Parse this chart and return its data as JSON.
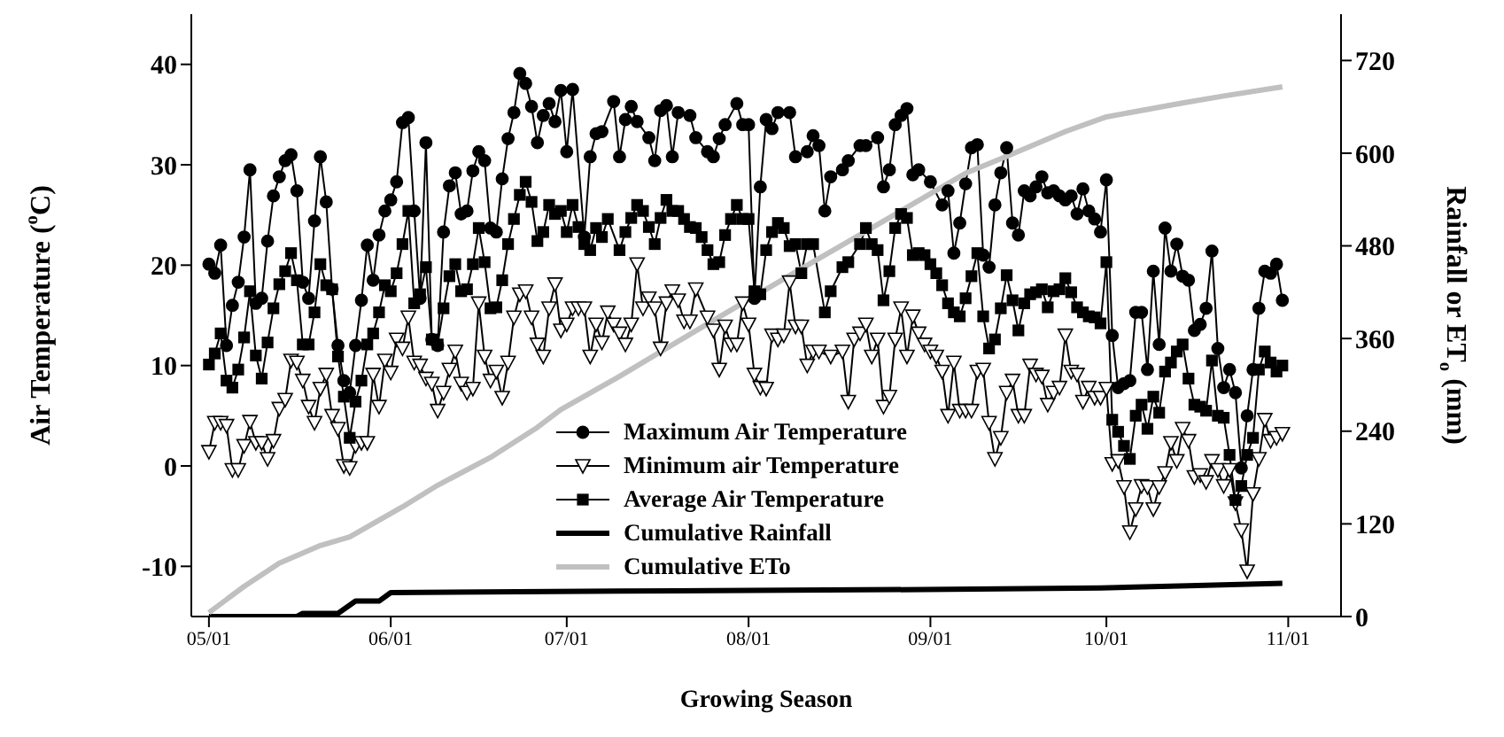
{
  "chart_data": {
    "type": "line",
    "xlabel": "Growing Season",
    "ylabel": "Air Temperature ($^{o}$C)",
    "y2label": "Rainfall or ET$_{o}$ (mm)",
    "xlim": [
      "--04-28",
      "--11-10"
    ],
    "xticks": [
      {
        "value": "--05-01",
        "label": "05/01"
      },
      {
        "value": "--06-01",
        "label": "06/01"
      },
      {
        "value": "--07-01",
        "label": "07/01"
      },
      {
        "value": "--08-01",
        "label": "08/01"
      },
      {
        "value": "--09-01",
        "label": "09/01"
      },
      {
        "value": "--10-01",
        "label": "10/01"
      },
      {
        "value": "--11-01",
        "label": "11/01"
      }
    ],
    "ylim": [
      -15,
      45
    ],
    "yticks": [
      -10,
      0,
      10,
      20,
      30,
      40
    ],
    "y2lim": [
      0,
      780
    ],
    "y2ticks": [
      0,
      120,
      240,
      360,
      480,
      600,
      720
    ],
    "grid": false,
    "legend": "bottom",
    "line_style": "solid",
    "series": [
      {
        "name": "Maximum Air Temperature",
        "color": "#000000",
        "marker": "circle",
        "x": [
          "--05-01",
          "--05-02",
          "--05-03",
          "--05-04",
          "--05-05",
          "--05-06",
          "--05-07",
          "--05-08",
          "--05-09",
          "--05-10",
          "--05-11",
          "--05-12",
          "--05-13",
          "--05-14",
          "--05-15",
          "--05-16",
          "--05-17",
          "--05-18",
          "--05-19",
          "--05-20",
          "--05-21",
          "--05-22",
          "--05-23",
          "--05-24",
          "--05-25",
          "--05-26",
          "--05-27",
          "--05-28",
          "--05-29",
          "--05-30",
          "--05-31",
          "--06-01",
          "--06-02",
          "--06-03",
          "--06-04",
          "--06-05",
          "--06-06",
          "--06-07",
          "--06-08",
          "--06-09",
          "--06-10",
          "--06-11",
          "--06-12",
          "--06-13",
          "--06-14",
          "--06-15",
          "--06-16",
          "--06-17",
          "--06-18",
          "--06-19",
          "--06-20",
          "--06-21",
          "--06-22",
          "--06-23",
          "--06-24",
          "--06-25",
          "--06-26",
          "--06-27",
          "--06-28",
          "--06-29",
          "--06-30",
          "--07-01",
          "--07-02",
          "--07-04",
          "--07-05",
          "--07-06",
          "--07-07",
          "--07-09",
          "--07-10",
          "--07-11",
          "--07-12",
          "--07-13",
          "--07-15",
          "--07-16",
          "--07-17",
          "--07-18",
          "--07-19",
          "--07-20",
          "--07-22",
          "--07-23",
          "--07-25",
          "--07-26",
          "--07-27",
          "--07-28",
          "--07-30",
          "--07-31",
          "--08-01",
          "--08-02",
          "--08-03",
          "--08-04",
          "--08-05",
          "--08-06",
          "--08-08",
          "--08-09",
          "--08-11",
          "--08-12",
          "--08-13",
          "--08-14",
          "--08-15",
          "--08-17",
          "--08-18",
          "--08-20",
          "--08-21",
          "--08-23",
          "--08-24",
          "--08-25",
          "--08-26",
          "--08-27",
          "--08-28",
          "--08-29",
          "--08-30",
          "--09-01",
          "--09-03",
          "--09-04",
          "--09-05",
          "--09-06",
          "--09-07",
          "--09-08",
          "--09-09",
          "--09-10",
          "--09-11",
          "--09-12",
          "--09-13",
          "--09-14",
          "--09-15",
          "--09-16",
          "--09-17",
          "--09-18",
          "--09-19",
          "--09-20",
          "--09-21",
          "--09-22",
          "--09-23",
          "--09-24",
          "--09-25",
          "--09-26",
          "--09-27",
          "--09-28",
          "--09-29",
          "--09-30",
          "--10-01",
          "--10-02",
          "--10-03",
          "--10-04",
          "--10-05",
          "--10-06",
          "--10-07",
          "--10-08",
          "--10-09",
          "--10-10",
          "--10-11",
          "--10-12",
          "--10-13",
          "--10-14",
          "--10-15",
          "--10-16",
          "--10-17",
          "--10-18",
          "--10-19",
          "--10-20",
          "--10-21",
          "--10-22",
          "--10-23",
          "--10-24",
          "--10-25",
          "--10-26",
          "--10-27",
          "--10-28",
          "--10-29",
          "--10-30",
          "--10-31"
        ],
        "values": [
          20.1,
          19.2,
          22,
          12,
          16,
          18.3,
          22.8,
          29.5,
          16.2,
          16.7,
          22.4,
          26.9,
          28.8,
          30.4,
          31,
          27.4,
          18.3,
          16.7,
          24.4,
          30.8,
          26.3,
          17.6,
          12,
          8.5,
          7.3,
          12,
          16.5,
          22,
          18.5,
          23,
          25.4,
          26.5,
          28.3,
          34.2,
          34.7,
          25.4,
          16.7,
          32.2,
          12.6,
          12,
          23.3,
          27.9,
          29.2,
          25.1,
          25.4,
          29.4,
          31.3,
          30.4,
          23.7,
          23.3,
          28.6,
          32.6,
          35.2,
          39.1,
          38.1,
          35.8,
          32.2,
          34.9,
          36.1,
          34.3,
          37.4,
          31.3,
          37.5,
          22.8,
          30.8,
          33.1,
          33.3,
          36.3,
          30.8,
          34.5,
          35.8,
          34.3,
          32.7,
          30.4,
          35.4,
          35.9,
          30.8,
          35.2,
          34.9,
          32.7,
          31.3,
          30.8,
          32.6,
          34,
          36.1,
          34,
          34,
          16.7,
          27.8,
          34.5,
          33.6,
          35.2,
          35.2,
          30.8,
          31.3,
          32.9,
          31.9,
          25.4,
          28.8,
          29.5,
          30.4,
          31.9,
          31.9,
          32.7,
          27.8,
          29.5,
          34,
          34.9,
          35.6,
          29,
          29.5,
          28.3,
          26,
          27.4,
          21.2,
          24.2,
          28.1,
          31.7,
          32,
          21,
          19.8,
          26,
          29.2,
          31.7,
          24.2,
          23,
          27.4,
          26.9,
          27.8,
          28.8,
          27.2,
          27.4,
          26.9,
          26.5,
          26.9,
          25.1,
          27.6,
          25.4,
          24.6,
          23.3,
          28.5,
          13,
          7.8,
          8.2,
          8.5,
          15.3,
          15.3,
          9.6,
          19.4,
          12.1,
          23.7,
          19.4,
          22.1,
          18.9,
          18.5,
          13.5,
          14.1,
          15.7,
          21.4,
          11.7,
          7.8,
          9.6,
          7.3,
          -0.2,
          5,
          9.6,
          15.7,
          19.4,
          19.2,
          20.1,
          16.5
        ]
      },
      {
        "name": "Minimum air Temperature",
        "color": "#000000",
        "marker": "triangle",
        "x": [
          "--05-01",
          "--05-02",
          "--05-03",
          "--05-04",
          "--05-05",
          "--05-06",
          "--05-07",
          "--05-08",
          "--05-09",
          "--05-10",
          "--05-11",
          "--05-12",
          "--05-13",
          "--05-14",
          "--05-15",
          "--05-16",
          "--05-17",
          "--05-18",
          "--05-19",
          "--05-20",
          "--05-21",
          "--05-22",
          "--05-23",
          "--05-24",
          "--05-25",
          "--05-26",
          "--05-27",
          "--05-28",
          "--05-29",
          "--05-30",
          "--05-31",
          "--06-01",
          "--06-02",
          "--06-03",
          "--06-04",
          "--06-05",
          "--06-06",
          "--06-07",
          "--06-08",
          "--06-09",
          "--06-10",
          "--06-11",
          "--06-12",
          "--06-13",
          "--06-14",
          "--06-15",
          "--06-16",
          "--06-17",
          "--06-18",
          "--06-19",
          "--06-20",
          "--06-21",
          "--06-22",
          "--06-23",
          "--06-24",
          "--06-25",
          "--06-26",
          "--06-27",
          "--06-28",
          "--06-29",
          "--06-30",
          "--07-01",
          "--07-02",
          "--07-03",
          "--07-04",
          "--07-05",
          "--07-06",
          "--07-07",
          "--07-08",
          "--07-09",
          "--07-10",
          "--07-11",
          "--07-12",
          "--07-13",
          "--07-14",
          "--07-15",
          "--07-16",
          "--07-17",
          "--07-18",
          "--07-19",
          "--07-20",
          "--07-21",
          "--07-22",
          "--07-23",
          "--07-25",
          "--07-26",
          "--07-27",
          "--07-28",
          "--07-29",
          "--07-30",
          "--07-31",
          "--08-01",
          "--08-02",
          "--08-03",
          "--08-04",
          "--08-05",
          "--08-06",
          "--08-07",
          "--08-08",
          "--08-09",
          "--08-10",
          "--08-11",
          "--08-12",
          "--08-13",
          "--08-15",
          "--08-17",
          "--08-18",
          "--08-19",
          "--08-20",
          "--08-21",
          "--08-22",
          "--08-23",
          "--08-24",
          "--08-25",
          "--08-26",
          "--08-27",
          "--08-28",
          "--08-29",
          "--08-30",
          "--08-31",
          "--09-01",
          "--09-02",
          "--09-03",
          "--09-04",
          "--09-05",
          "--09-06",
          "--09-07",
          "--09-08",
          "--09-09",
          "--09-10",
          "--09-11",
          "--09-12",
          "--09-13",
          "--09-14",
          "--09-15",
          "--09-16",
          "--09-17",
          "--09-18",
          "--09-19",
          "--09-20",
          "--09-21",
          "--09-22",
          "--09-23",
          "--09-24",
          "--09-25",
          "--09-26",
          "--09-27",
          "--09-28",
          "--09-29",
          "--09-30",
          "--10-01",
          "--10-02",
          "--10-03",
          "--10-04",
          "--10-05",
          "--10-06",
          "--10-07",
          "--10-08",
          "--10-09",
          "--10-10",
          "--10-11",
          "--10-12",
          "--10-13",
          "--10-14",
          "--10-15",
          "--10-16",
          "--10-17",
          "--10-18",
          "--10-19",
          "--10-20",
          "--10-21",
          "--10-22",
          "--10-23",
          "--10-24",
          "--10-25",
          "--10-26",
          "--10-27",
          "--10-28",
          "--10-29",
          "--10-30",
          "--10-31"
        ],
        "values": [
          1.4,
          4.3,
          4.3,
          4,
          -0.4,
          -0.4,
          2,
          4.4,
          2.3,
          2.3,
          0.7,
          2.5,
          5.7,
          6.6,
          10.5,
          10.3,
          8.5,
          5.9,
          4.3,
          7.7,
          9.1,
          5,
          3.7,
          0,
          -0.2,
          2,
          2.3,
          2.3,
          9.1,
          5.9,
          10.5,
          9.3,
          12.6,
          11.7,
          14.8,
          10.3,
          10,
          8.7,
          8.2,
          5.5,
          7.3,
          9.6,
          11.4,
          8.2,
          7.3,
          7.7,
          16.2,
          10.9,
          8.5,
          9.4,
          6.8,
          10.3,
          14.8,
          17.1,
          17.4,
          14.8,
          12.1,
          10.9,
          15.7,
          18.1,
          13.5,
          14.1,
          15.7,
          15.7,
          15.7,
          10.9,
          14.1,
          12.3,
          15.3,
          14.1,
          13.2,
          12.1,
          14.1,
          20.1,
          15.7,
          16.7,
          15.7,
          11.7,
          16.2,
          17.4,
          16.5,
          14.4,
          14.4,
          17.6,
          14.8,
          13.5,
          9.6,
          13.9,
          12.1,
          12.1,
          16.2,
          14.1,
          9.1,
          7.8,
          7.7,
          13,
          12.6,
          13,
          18.3,
          13.9,
          13.9,
          10,
          11.4,
          11.4,
          10.9,
          11.4,
          6.4,
          12.6,
          13.2,
          14.1,
          10.9,
          12.6,
          5.9,
          6.9,
          12.6,
          15.7,
          10.9,
          14.9,
          13.2,
          12.1,
          11.4,
          10.9,
          9.4,
          5,
          10.3,
          5.5,
          5.5,
          5.5,
          9.4,
          9.6,
          4.3,
          0.7,
          2.8,
          7.3,
          8.5,
          5,
          5,
          10,
          9.1,
          8.9,
          6.1,
          7.3,
          7.8,
          13,
          9.4,
          9.1,
          6.4,
          7.8,
          6.8,
          6.8,
          7.7,
          0.2,
          0.5,
          -2.1,
          -6.6,
          -4.3,
          -2,
          -2.1,
          -4.3,
          -2.1,
          -0.7,
          2.3,
          0.5,
          3.7,
          2.5,
          -1.1,
          -0.9,
          -1.6,
          0.5,
          -0.4,
          -2,
          -0.4,
          -3.7,
          -6.4,
          -10.5,
          -2.8,
          0.7,
          4.6,
          2.5,
          2.8,
          3.2
        ]
      },
      {
        "name": "Average Air Temperature",
        "color": "#000000",
        "marker": "square",
        "x": [
          "--05-01",
          "--05-02",
          "--05-03",
          "--05-04",
          "--05-05",
          "--05-06",
          "--05-07",
          "--05-08",
          "--05-09",
          "--05-10",
          "--05-11",
          "--05-12",
          "--05-13",
          "--05-14",
          "--05-15",
          "--05-16",
          "--05-17",
          "--05-18",
          "--05-19",
          "--05-20",
          "--05-21",
          "--05-22",
          "--05-23",
          "--05-24",
          "--05-25",
          "--05-26",
          "--05-27",
          "--05-28",
          "--05-29",
          "--05-30",
          "--05-31",
          "--06-01",
          "--06-02",
          "--06-03",
          "--06-04",
          "--06-05",
          "--06-06",
          "--06-07",
          "--06-08",
          "--06-09",
          "--06-10",
          "--06-11",
          "--06-12",
          "--06-13",
          "--06-14",
          "--06-15",
          "--06-16",
          "--06-17",
          "--06-18",
          "--06-19",
          "--06-20",
          "--06-21",
          "--06-22",
          "--06-23",
          "--06-24",
          "--06-25",
          "--06-26",
          "--06-27",
          "--06-28",
          "--06-29",
          "--06-30",
          "--07-01",
          "--07-02",
          "--07-03",
          "--07-04",
          "--07-05",
          "--07-06",
          "--07-07",
          "--07-08",
          "--07-10",
          "--07-11",
          "--07-12",
          "--07-13",
          "--07-14",
          "--07-15",
          "--07-16",
          "--07-17",
          "--07-18",
          "--07-19",
          "--07-20",
          "--07-21",
          "--07-22",
          "--07-23",
          "--07-24",
          "--07-25",
          "--07-26",
          "--07-27",
          "--07-28",
          "--07-29",
          "--07-30",
          "--07-31",
          "--08-01",
          "--08-02",
          "--08-03",
          "--08-04",
          "--08-05",
          "--08-06",
          "--08-07",
          "--08-08",
          "--08-09",
          "--08-10",
          "--08-11",
          "--08-12",
          "--08-14",
          "--08-15",
          "--08-17",
          "--08-18",
          "--08-20",
          "--08-21",
          "--08-22",
          "--08-23",
          "--08-24",
          "--08-25",
          "--08-26",
          "--08-27",
          "--08-28",
          "--08-29",
          "--08-30",
          "--08-31",
          "--09-01",
          "--09-02",
          "--09-03",
          "--09-04",
          "--09-05",
          "--09-06",
          "--09-07",
          "--09-08",
          "--09-09",
          "--09-10",
          "--09-11",
          "--09-12",
          "--09-13",
          "--09-14",
          "--09-15",
          "--09-16",
          "--09-17",
          "--09-18",
          "--09-19",
          "--09-20",
          "--09-21",
          "--09-22",
          "--09-23",
          "--09-24",
          "--09-25",
          "--09-26",
          "--09-27",
          "--09-28",
          "--09-29",
          "--09-30",
          "--10-01",
          "--10-02",
          "--10-03",
          "--10-04",
          "--10-05",
          "--10-06",
          "--10-07",
          "--10-08",
          "--10-09",
          "--10-10",
          "--10-11",
          "--10-12",
          "--10-13",
          "--10-14",
          "--10-15",
          "--10-16",
          "--10-17",
          "--10-18",
          "--10-19",
          "--10-20",
          "--10-21",
          "--10-22",
          "--10-23",
          "--10-24",
          "--10-25",
          "--10-26",
          "--10-27",
          "--10-28",
          "--10-29",
          "--10-30",
          "--10-31"
        ],
        "values": [
          10.1,
          11.2,
          13.2,
          8.5,
          7.8,
          9.6,
          12.8,
          17.4,
          11,
          8.7,
          12.3,
          15.7,
          18.1,
          19.4,
          21.2,
          18.5,
          12.1,
          12.1,
          15.3,
          20.1,
          18,
          17.6,
          10.9,
          6.9,
          2.8,
          6.4,
          8.5,
          12.1,
          13.2,
          15.3,
          18,
          17.4,
          19.2,
          22.1,
          25.4,
          16.2,
          17.1,
          19.8,
          12.6,
          12.1,
          15.7,
          18.9,
          20.1,
          17.4,
          17.6,
          20.1,
          23.7,
          20.3,
          15.7,
          15.8,
          18.5,
          22.1,
          24.6,
          27,
          28.3,
          26.3,
          22.4,
          23.3,
          26,
          25.1,
          25.4,
          23.3,
          26,
          23.8,
          22.1,
          21.5,
          23.7,
          22.8,
          24.6,
          21.5,
          23.3,
          24.7,
          26,
          25.4,
          23.8,
          22.1,
          24.7,
          26.5,
          25.4,
          25.4,
          24.6,
          23.8,
          23.7,
          22.8,
          21.5,
          20.1,
          20.3,
          23,
          24.6,
          26,
          24.6,
          24.6,
          17.4,
          17.1,
          21.5,
          23.3,
          24.2,
          23.7,
          21.9,
          22.1,
          19.2,
          22.1,
          22.1,
          15.3,
          17.4,
          19.8,
          20.3,
          22.1,
          23.7,
          22.1,
          21.5,
          16.5,
          19.4,
          23.7,
          25.1,
          24.7,
          21,
          21.2,
          21,
          20.1,
          19.2,
          18,
          16.2,
          15.3,
          14.9,
          16.7,
          18.9,
          21.2,
          14.9,
          11.7,
          12.6,
          15.7,
          19,
          16.5,
          13.5,
          16.2,
          17.1,
          17.3,
          17.6,
          15.8,
          17.4,
          17.6,
          18.7,
          17.3,
          15.8,
          15.3,
          14.9,
          14.8,
          14.2,
          20.3,
          4.6,
          3.4,
          2,
          0.7,
          5,
          6.1,
          3.7,
          6.9,
          5.3,
          9.4,
          10.3,
          11.4,
          12.1,
          8.7,
          6.1,
          5.9,
          5.5,
          10.5,
          5,
          4.8,
          1.1,
          -3.4,
          -2,
          1.1,
          2.8,
          9.6,
          11.4,
          10.3,
          9.4,
          10
        ]
      },
      {
        "name": "Cumulative Rainfall",
        "color": "#000000",
        "marker": "none",
        "axis": "y2",
        "x": [
          "--05-01",
          "--05-16",
          "--05-17",
          "--05-23",
          "--05-26",
          "--05-30",
          "--06-01",
          "--07-10",
          "--08-31",
          "--09-30",
          "--10-15",
          "--10-31"
        ],
        "values": [
          0,
          0,
          4,
          4,
          20,
          20,
          31,
          33,
          35,
          37,
          40,
          43
        ]
      },
      {
        "name": "Cumulative ETo",
        "color": "#c0c0c0",
        "marker": "none",
        "axis": "y2",
        "x": [
          "--05-01",
          "--05-07",
          "--05-13",
          "--05-20",
          "--05-25",
          "--06-03",
          "--06-09",
          "--06-18",
          "--06-26",
          "--06-30",
          "--07-10",
          "--07-25",
          "--08-09",
          "--08-24",
          "--09-07",
          "--09-14",
          "--09-24",
          "--10-01",
          "--10-14",
          "--10-21",
          "--10-31"
        ],
        "values": [
          5,
          39,
          69,
          92,
          103,
          142,
          170,
          206,
          245,
          268,
          311,
          379,
          446,
          512,
          574,
          596,
          628,
          647,
          665,
          674,
          686
        ]
      }
    ]
  }
}
